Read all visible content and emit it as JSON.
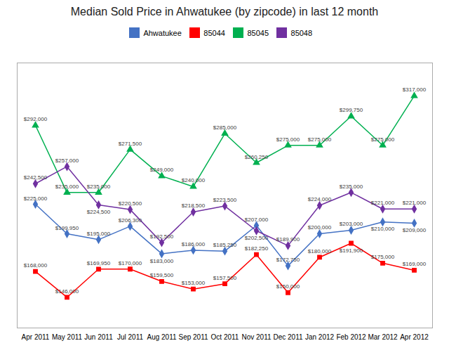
{
  "chart_data": {
    "type": "line",
    "title": "Median Sold Price in Ahwatukee (by zipcode) in last 12 month",
    "categories": [
      "Apr 2011",
      "May 2011",
      "Jun 2011",
      "Jul 2011",
      "Aug 2011",
      "Sep 2011",
      "Oct 2011",
      "Nov 2011",
      "Dec 2011",
      "Jan 2012",
      "Feb 2012",
      "Mar 2012",
      "Apr 2012"
    ],
    "series": [
      {
        "name": "Ahwatukee",
        "color": "#4472C4",
        "marker": "diamond",
        "values": [
          225000,
          199950,
          195000,
          206300,
          183000,
          186000,
          185250,
          207000,
          172750,
          200000,
          203000,
          210000,
          209000
        ],
        "value_labels": [
          "$225,000",
          "$199,950",
          "$195,000",
          "$206,300",
          "$183,000",
          "$186,000",
          "$185,250",
          "$207,000",
          "$172,750",
          "$200,000",
          "$203,000",
          "$210,000",
          "$209,000"
        ]
      },
      {
        "name": "85044",
        "color": "#FF0000",
        "marker": "square",
        "values": [
          168000,
          146000,
          169950,
          170000,
          159500,
          153000,
          157500,
          182250,
          150000,
          180000,
          191900,
          175000,
          169000
        ],
        "value_labels": [
          "$168,000",
          "$146,000",
          "$169,950",
          "$170,000",
          "$159,500",
          "$153,000",
          "$157,500",
          "$182,250",
          "$150,000",
          "$180,000",
          "$191,900",
          "$175,000",
          "$169,000"
        ]
      },
      {
        "name": "85045",
        "color": "#00B050",
        "marker": "triangle",
        "values": [
          292000,
          235000,
          235000,
          271500,
          249000,
          240000,
          285000,
          260250,
          275000,
          275000,
          299750,
          275000,
          317000
        ],
        "value_labels": [
          "$292,000",
          "$235,000",
          "$235,000",
          "$271,500",
          "$249,000",
          "$240,000",
          "$285,000",
          "$260,250",
          "$275,000",
          "$275,000",
          "$299,750",
          "$275,000",
          "$317,000"
        ]
      },
      {
        "name": "85048",
        "color": "#7030A0",
        "marker": "diamond",
        "values": [
          242500,
          257000,
          224500,
          220500,
          192500,
          218500,
          223500,
          202500,
          189900,
          224000,
          235000,
          221000,
          221000
        ],
        "value_labels": [
          "$242,500",
          "$257,000",
          "$224,500",
          "$220,500",
          "$192,500",
          "$218,500",
          "$223,500",
          "$202,500",
          "$189,900",
          "$224,000",
          "$235,000",
          "$221,000",
          "$221,000"
        ]
      }
    ],
    "ylim": [
      120000,
      345000
    ],
    "data_labels": true,
    "tick_labels": "x",
    "grid": false
  }
}
